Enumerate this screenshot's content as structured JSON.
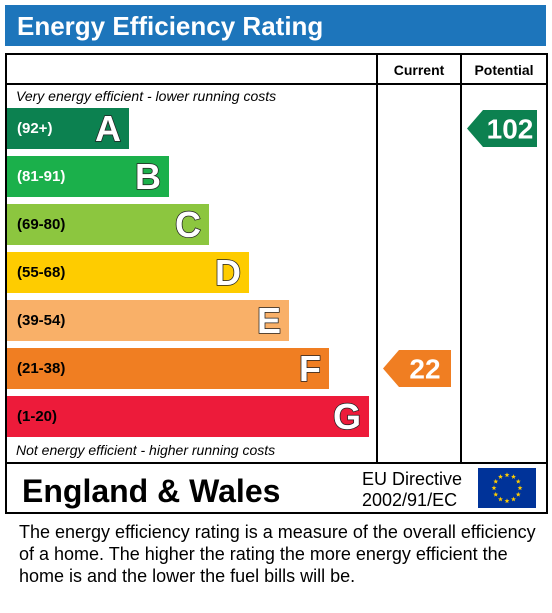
{
  "title": "Energy Efficiency Rating",
  "columns": {
    "current": "Current",
    "potential": "Potential"
  },
  "notes": {
    "top": "Very energy efficient - lower running costs",
    "bottom": "Not energy efficient - higher running costs"
  },
  "footer": {
    "region": "England & Wales",
    "directive_line1": "EU Directive",
    "directive_line2": "2002/91/EC"
  },
  "description": "The energy efficiency rating is a measure of the overall efficiency of a home.  The higher the rating the more energy efficient the home is and the lower the fuel bills will be.",
  "chart_data": {
    "type": "bar",
    "title": "Energy Efficiency Rating",
    "bands": [
      {
        "letter": "A",
        "range": "(92+)",
        "color": "#0c8150",
        "text_color": "#ffffff"
      },
      {
        "letter": "B",
        "range": "(81-91)",
        "color": "#1bb04b",
        "text_color": "#ffffff"
      },
      {
        "letter": "C",
        "range": "(69-80)",
        "color": "#8cc63f",
        "text_color": "#000000"
      },
      {
        "letter": "D",
        "range": "(55-68)",
        "color": "#fecc00",
        "text_color": "#000000"
      },
      {
        "letter": "E",
        "range": "(39-54)",
        "color": "#f9b068",
        "text_color": "#000000"
      },
      {
        "letter": "F",
        "range": "(21-38)",
        "color": "#f07e22",
        "text_color": "#000000"
      },
      {
        "letter": "G",
        "range": "(1-20)",
        "color": "#ed1b3a",
        "text_color": "#000000"
      }
    ],
    "current": {
      "value": 22,
      "band": "F",
      "color": "#f07e22"
    },
    "potential": {
      "value": 102,
      "band": "A",
      "color": "#0c8150"
    }
  }
}
